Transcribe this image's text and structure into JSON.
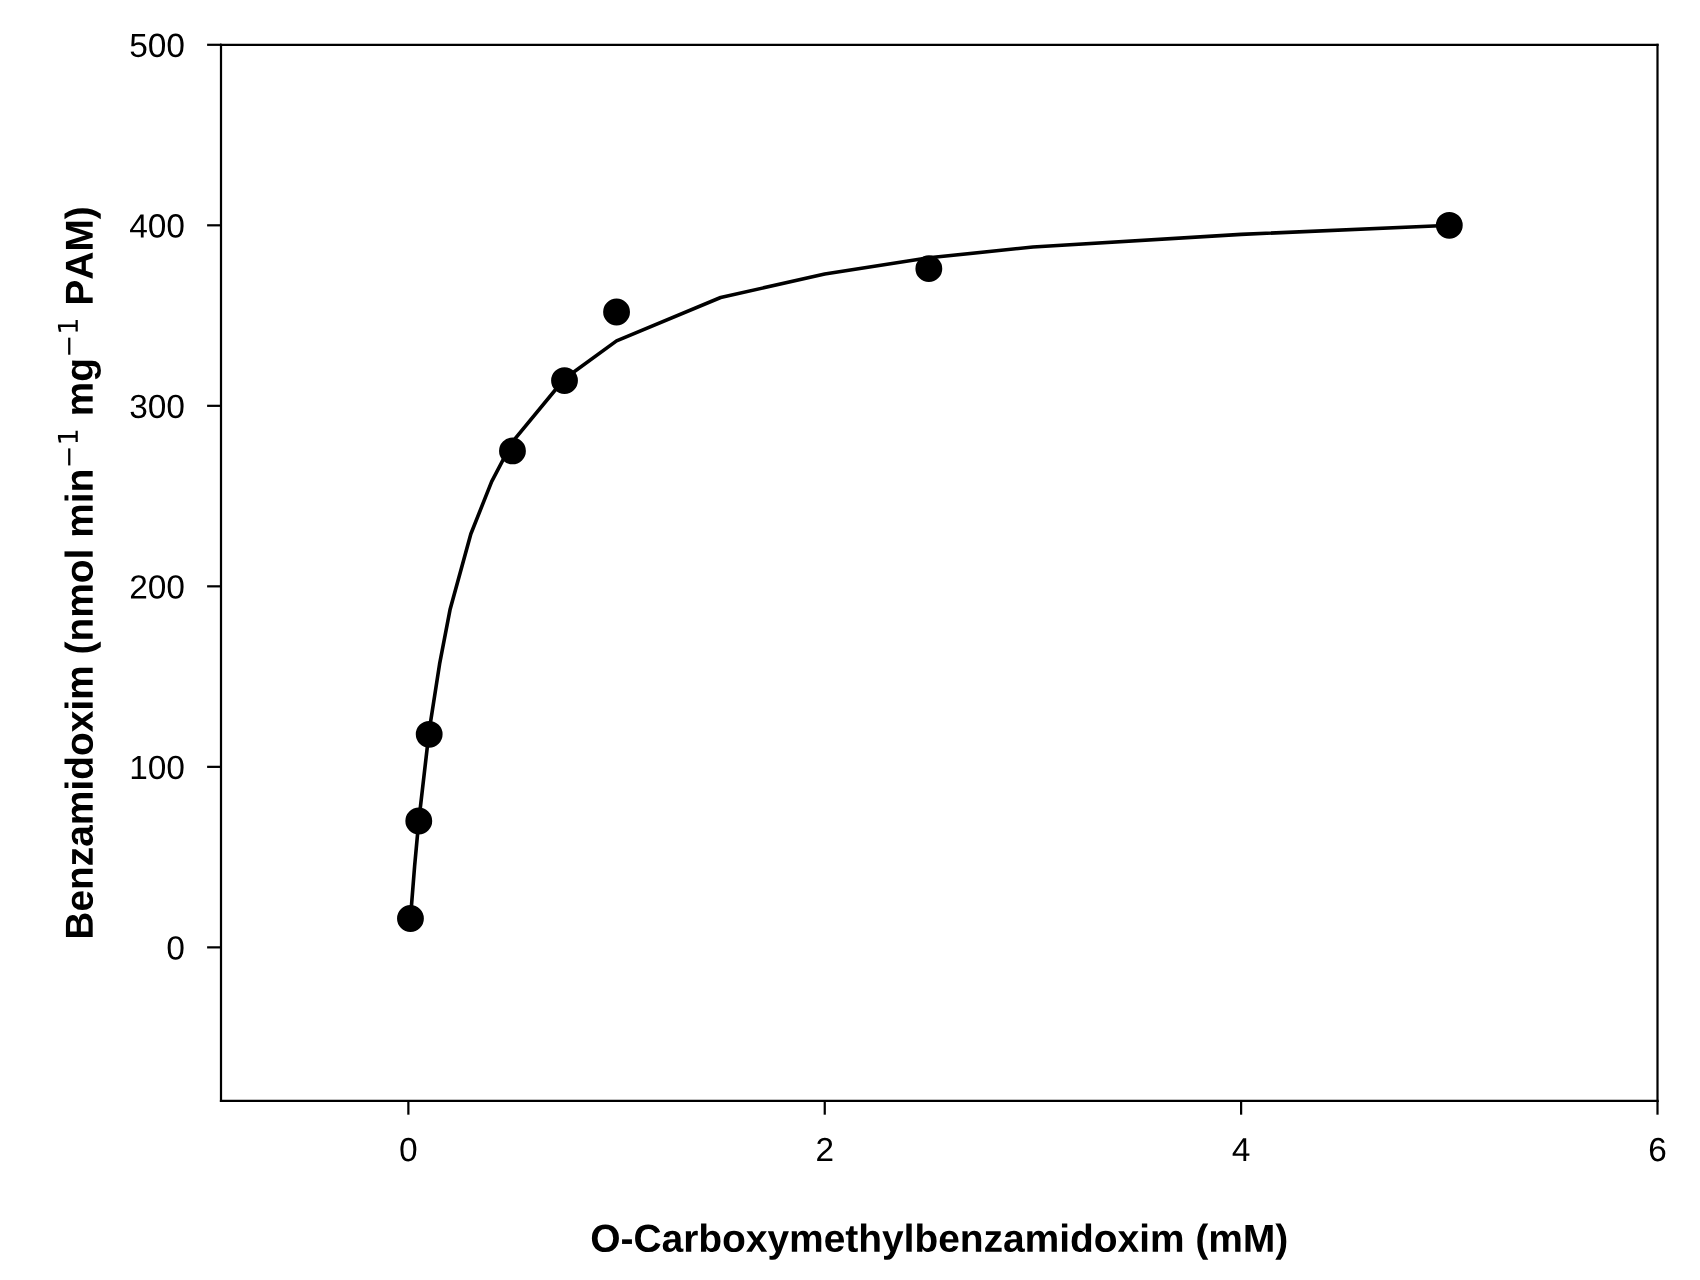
{
  "chart_data": {
    "type": "scatter",
    "xlabel": "O-Carboxymethylbenzamidoxim (mM)",
    "ylabel": "Benzamidoxim (nmol min$^{−1}$ mg$^{−1}$ PAM)",
    "xlim": [
      -0.9,
      6
    ],
    "xticks": [
      0,
      2,
      4,
      6
    ],
    "ylim": [
      -85,
      500
    ],
    "yticks": [
      0,
      100,
      200,
      300,
      400,
      500
    ],
    "grid": false,
    "legend": false,
    "series": [
      {
        "color": "#000000",
        "marker": "circle",
        "x": [
          0.01,
          0.05,
          0.1,
          0.5,
          0.75,
          1.0,
          2.5,
          5.0
        ],
        "values": [
          16,
          70,
          118,
          275,
          314,
          352,
          376,
          400
        ]
      },
      {
        "type": "line",
        "color": "#000000",
        "marker": "none",
        "line_style": "solid",
        "x": [
          0.01,
          0.03,
          0.05,
          0.1,
          0.15,
          0.2,
          0.3,
          0.4,
          0.5,
          0.75,
          1,
          1.5,
          2,
          2.5,
          3,
          4,
          5
        ],
        "values": [
          16,
          45,
          70,
          120,
          157,
          187,
          229,
          258,
          280,
          315,
          336,
          360,
          373,
          382,
          388,
          395,
          400
        ]
      }
    ]
  }
}
